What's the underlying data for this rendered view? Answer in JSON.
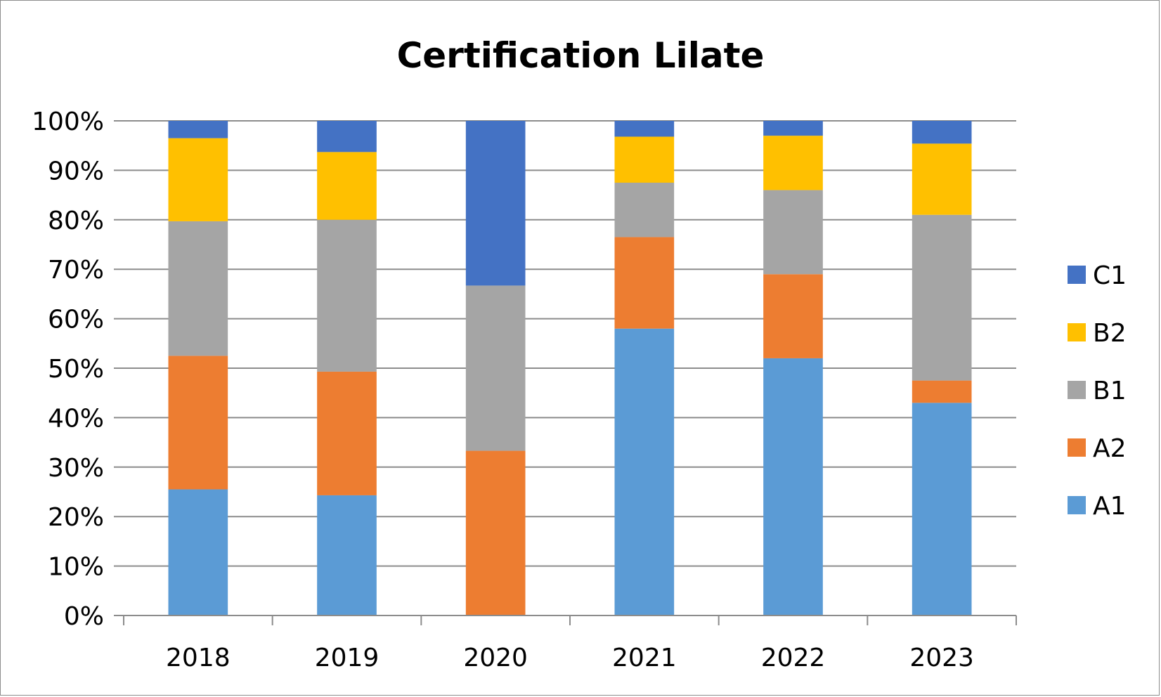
{
  "chart_data": {
    "type": "bar",
    "stacked": true,
    "title": "Certification Lilate",
    "xlabel": "",
    "ylabel": "",
    "categories": [
      "2018",
      "2019",
      "2020",
      "2021",
      "2022",
      "2023"
    ],
    "ylim": [
      0,
      100
    ],
    "yticks": [
      "0%",
      "10%",
      "20%",
      "30%",
      "40%",
      "50%",
      "60%",
      "70%",
      "80%",
      "90%",
      "100%"
    ],
    "grid": true,
    "legend_position": "right",
    "series": [
      {
        "name": "A1",
        "color": "#5B9BD5",
        "values": [
          25.5,
          24.3,
          0,
          58,
          52,
          43
        ]
      },
      {
        "name": "A2",
        "color": "#ED7D31",
        "values": [
          27,
          25,
          33.3,
          18.5,
          17,
          4.5
        ]
      },
      {
        "name": "B1",
        "color": "#A5A5A5",
        "values": [
          27.2,
          30.7,
          33.4,
          11,
          17,
          33.5
        ]
      },
      {
        "name": "B2",
        "color": "#FFC000",
        "values": [
          16.8,
          13.7,
          0,
          9.3,
          11,
          14.4
        ]
      },
      {
        "name": "C1",
        "color": "#4472C4",
        "values": [
          3.5,
          6.3,
          33.3,
          3.2,
          3,
          4.6
        ]
      }
    ]
  }
}
